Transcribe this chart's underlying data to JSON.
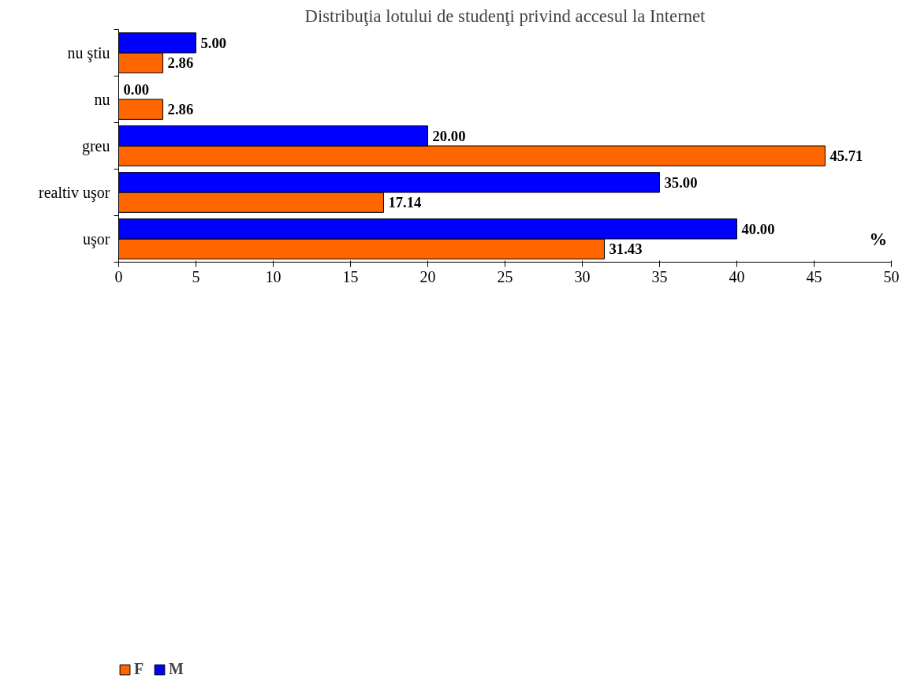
{
  "chart_data": {
    "type": "bar",
    "orientation": "horizontal",
    "title": "Distribuţia lotului de studenţi privind accesul la Internet",
    "categories": [
      "nu ştiu",
      "nu",
      "greu",
      "realtiv uşor",
      "uşor"
    ],
    "series": [
      {
        "name": "F",
        "color": "#ff6600",
        "values": [
          2.86,
          2.86,
          45.71,
          17.14,
          31.43
        ],
        "value_labels": [
          "2.86",
          "2.86",
          "45.71",
          "17.14",
          "31.43"
        ]
      },
      {
        "name": "M",
        "color": "#0000ff",
        "values": [
          5.0,
          0.0,
          20.0,
          35.0,
          40.0
        ],
        "value_labels": [
          "5.00",
          "0.00",
          "20.00",
          "35.00",
          "40.00"
        ]
      }
    ],
    "xlim": [
      0,
      50
    ],
    "xticks": [
      0,
      5,
      10,
      15,
      20,
      25,
      30,
      35,
      40,
      45,
      50
    ],
    "grid": false,
    "legend": "bottom left",
    "annotations": [
      "%"
    ]
  }
}
